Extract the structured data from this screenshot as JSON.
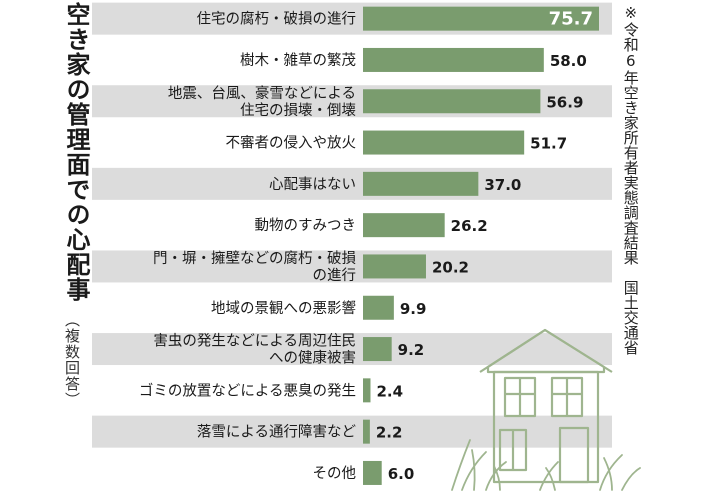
{
  "title": "空き家の管理面での心配事",
  "subtitle": "（複数回答）",
  "source": "※令和6年空き家所有者実態調査結果　国土交通省",
  "chart_data": {
    "type": "bar",
    "orientation": "horizontal",
    "categories": [
      [
        "住宅の腐朽・破損の進行"
      ],
      [
        "樹木・雑草の繁茂"
      ],
      [
        "地震、台風、豪雪などによる",
        "住宅の損壊・倒壊"
      ],
      [
        "不審者の侵入や放火"
      ],
      [
        "心配事はない"
      ],
      [
        "動物のすみつき"
      ],
      [
        "門・塀・擁壁などの腐朽・破損",
        "の進行"
      ],
      [
        "地域の景観への悪影響"
      ],
      [
        "害虫の発生などによる周辺住民",
        "への健康被害"
      ],
      [
        "ゴミの放置などによる悪臭の発生"
      ],
      [
        "落雪による通行障害など"
      ],
      [
        "その他"
      ]
    ],
    "values": [
      75.7,
      58.0,
      56.9,
      51.7,
      37.0,
      26.2,
      20.2,
      9.9,
      9.2,
      2.4,
      2.2,
      6.0
    ],
    "value_labels": [
      "75.7",
      "58.0",
      "56.9",
      "51.7",
      "37.0",
      "26.2",
      "20.2",
      "9.9",
      "9.2",
      "2.4",
      "2.2",
      "6.0"
    ],
    "xlim": [
      0,
      100
    ],
    "bar_color": "#7a9c6e",
    "band_color": "#dcdcdc"
  }
}
